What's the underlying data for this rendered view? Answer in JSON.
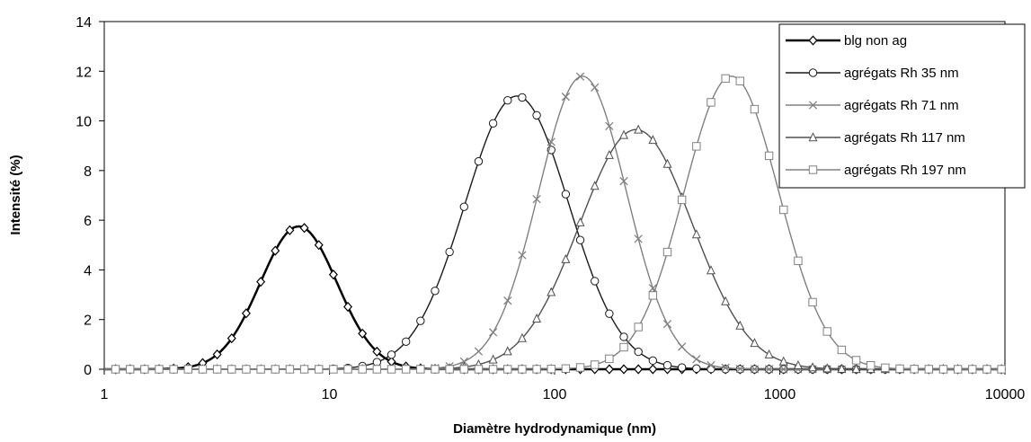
{
  "chart_data": {
    "type": "line",
    "title": "",
    "xlabel": "Diamètre hydrodynamique (nm)",
    "ylabel": "Intensité (%)",
    "x_scale": "log",
    "xlim": [
      1,
      10000
    ],
    "ylim": [
      0,
      14
    ],
    "x_ticks": [
      "1",
      "10",
      "100",
      "1000",
      "10000"
    ],
    "y_ticks": [
      "0",
      "2",
      "4",
      "6",
      "8",
      "10",
      "12",
      "14"
    ],
    "grid": false,
    "legend_position": "top-right",
    "series": [
      {
        "name": "blg non ag",
        "marker": "diamond",
        "color": "#000000",
        "line_width": 2.5,
        "peak_x": 7.3,
        "peak_y": 5.75,
        "sigma_log10": 0.17
      },
      {
        "name": "agrégats Rh 35 nm",
        "marker": "circle",
        "color": "#1a1a1a",
        "line_width": 1.4,
        "peak_x": 68,
        "peak_y": 11.0,
        "sigma_log10": 0.23
      },
      {
        "name": "agrégats Rh 71 nm",
        "marker": "x",
        "color": "#808080",
        "line_width": 1.4,
        "peak_x": 133,
        "peak_y": 11.8,
        "sigma_log10": 0.195
      },
      {
        "name": "agrégats Rh 117 nm",
        "marker": "triangle",
        "color": "#505050",
        "line_width": 1.4,
        "peak_x": 230,
        "peak_y": 9.65,
        "sigma_log10": 0.25
      },
      {
        "name": "agrégats Rh 197 nm",
        "marker": "square",
        "color": "#808080",
        "line_width": 1.4,
        "peak_x": 610,
        "peak_y": 11.8,
        "sigma_log10": 0.21
      }
    ],
    "x_sample_log10_start": 0.05,
    "x_sample_step": 0.0645
  }
}
